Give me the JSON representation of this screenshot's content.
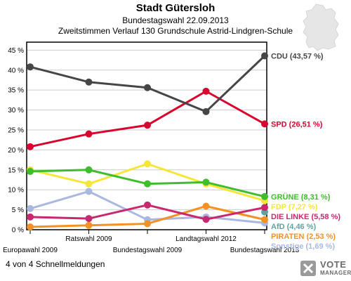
{
  "header": {
    "title": "Stadt Gütersloh",
    "subtitle": "Bundestagswahl 22.09.2013",
    "description": "Zweitstimmen Verlauf 130 Grundschule Astrid-Lindgren-Schule"
  },
  "footer": {
    "text": "4 von 4 Schnellmeldungen"
  },
  "logo": {
    "line1": "VOTE",
    "line2": "MANAGER"
  },
  "chart_data": {
    "type": "line",
    "categories": [
      "Europawahl 2009",
      "Ratswahl 2009",
      "Bundestagswahl 2009",
      "Landtagswahl 2012",
      "Bundestagswahl 2013"
    ],
    "ylim": [
      0,
      47
    ],
    "yticks": [
      0,
      5,
      10,
      15,
      20,
      25,
      30,
      35,
      40,
      45
    ],
    "ytick_labels": [
      "0 %",
      "5 %",
      "10 %",
      "15 %",
      "20 %",
      "25 %",
      "30 %",
      "35 %",
      "40 %",
      "45 %"
    ],
    "grid": true,
    "series": [
      {
        "name": "Sonstige (1,69 %)",
        "color": "#aab8e0",
        "values": [
          5.3,
          9.6,
          2.5,
          3.2,
          1.69
        ]
      },
      {
        "name": "AfD (4,46 %)",
        "color": "#5fa3a1",
        "values": [
          null,
          null,
          null,
          null,
          4.46
        ]
      },
      {
        "name": "PIRATEN (2,53 %)",
        "color": "#f39224",
        "values": [
          0.7,
          1.1,
          1.5,
          5.9,
          2.53
        ]
      },
      {
        "name": "DIE LINKE (5,58 %)",
        "color": "#c8286e",
        "values": [
          3.2,
          2.8,
          6.2,
          2.6,
          5.58
        ]
      },
      {
        "name": "FDP (7,27 %)",
        "color": "#f5e638",
        "values": [
          15.0,
          11.5,
          16.5,
          11.5,
          7.27
        ]
      },
      {
        "name": "GRÜNE (8,31 %)",
        "color": "#3ebd2d",
        "values": [
          14.6,
          15.0,
          11.5,
          11.9,
          8.31
        ]
      },
      {
        "name": "SPD (26,51 %)",
        "color": "#d8052f",
        "values": [
          20.8,
          24.0,
          26.2,
          34.7,
          26.51
        ]
      },
      {
        "name": "CDU (43,57 %)",
        "color": "#464646",
        "values": [
          40.8,
          37.0,
          35.6,
          29.6,
          43.57
        ]
      }
    ]
  }
}
